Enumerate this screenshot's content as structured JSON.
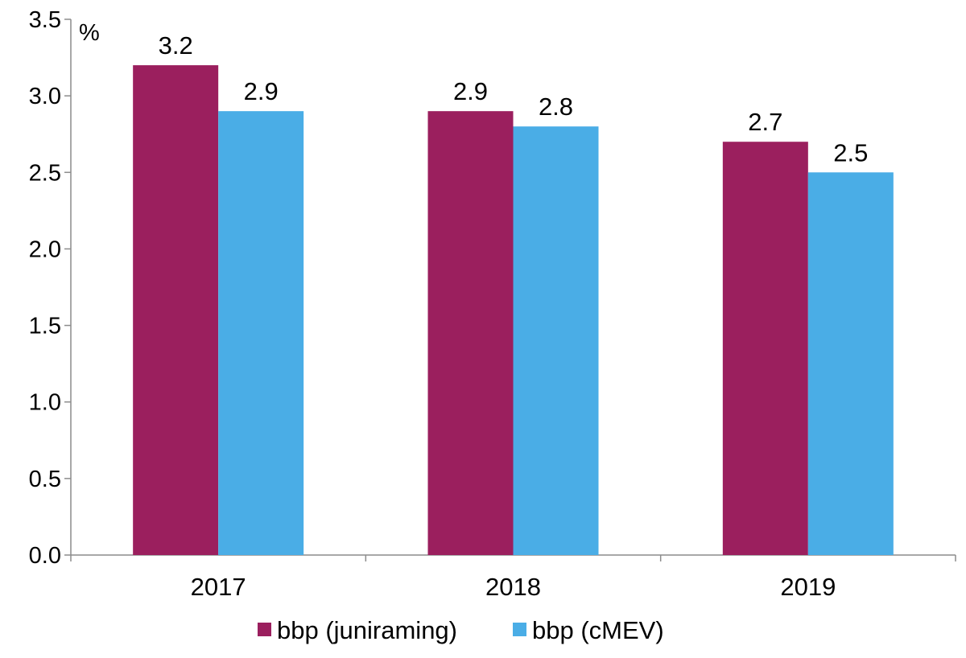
{
  "chart_data": {
    "type": "bar",
    "title": "",
    "xlabel": "",
    "ylabel": "%",
    "ylim": [
      0,
      3.5
    ],
    "yticks": [
      0.0,
      0.5,
      1.0,
      1.5,
      2.0,
      2.5,
      3.0,
      3.5
    ],
    "ytick_labels": [
      "0.0",
      "0.5",
      "1.0",
      "1.5",
      "2.0",
      "2.5",
      "3.0",
      "3.5"
    ],
    "categories": [
      "2017",
      "2018",
      "2019"
    ],
    "series": [
      {
        "name": "bbp (juniraming)",
        "values": [
          3.2,
          2.9,
          2.7
        ],
        "labels": [
          "3.2",
          "2.9",
          "2.7"
        ],
        "color": "#9b1f5e"
      },
      {
        "name": "bbp (cMEV)",
        "values": [
          2.9,
          2.8,
          2.5
        ],
        "labels": [
          "2.9",
          "2.8",
          "2.5"
        ],
        "color": "#4aade6"
      }
    ],
    "grid": false,
    "legend_position": "bottom"
  }
}
